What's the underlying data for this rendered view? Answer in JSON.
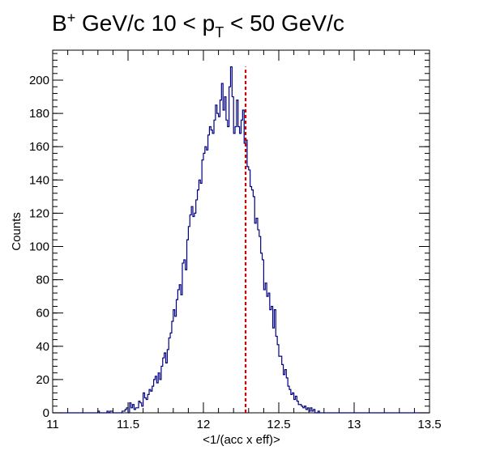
{
  "chart_data": {
    "type": "histogram",
    "title": {
      "prefix": "B",
      "prefix_sup": "+",
      "mid": " GeV/c 10 < p",
      "mid_sub": "T",
      "suffix": " < 50 GeV/c"
    },
    "xlabel": "<1/(acc x eff)>",
    "ylabel": "Counts",
    "xlim": [
      11,
      13.5
    ],
    "ylim": [
      0,
      218
    ],
    "x_ticks": [
      11,
      11.5,
      12,
      12.5,
      13,
      13.5
    ],
    "x_tick_labels": [
      "11",
      "11.5",
      "12",
      "12.5",
      "13",
      "13.5"
    ],
    "y_ticks": [
      0,
      20,
      40,
      60,
      80,
      100,
      120,
      140,
      160,
      180,
      200
    ],
    "y_tick_labels": [
      "0",
      "20",
      "40",
      "60",
      "80",
      "100",
      "120",
      "140",
      "160",
      "180",
      "200"
    ],
    "bin_start": 11,
    "bin_width": 0.01,
    "counts": [
      0,
      0,
      0,
      0,
      0,
      0,
      0,
      0,
      0,
      0,
      0,
      0,
      0,
      0,
      0,
      0,
      0,
      0,
      0,
      0,
      0,
      0,
      0,
      0,
      0,
      0,
      0,
      0,
      0,
      0,
      1,
      0,
      0,
      0,
      0,
      0,
      1,
      0,
      1,
      1,
      0,
      0,
      0,
      0,
      0,
      0,
      1,
      1,
      2,
      3,
      0,
      6,
      3,
      5,
      2,
      3,
      3,
      7,
      6,
      4,
      12,
      9,
      8,
      11,
      14,
      13,
      16,
      20,
      22,
      18,
      24,
      20,
      28,
      33,
      36,
      30,
      38,
      45,
      48,
      55,
      62,
      58,
      68,
      74,
      77,
      71,
      90,
      92,
      86,
      104,
      112,
      119,
      124,
      118,
      120,
      128,
      134,
      140,
      138,
      152,
      156,
      160,
      158,
      167,
      172,
      170,
      168,
      176,
      185,
      180,
      178,
      188,
      198,
      182,
      190,
      176,
      172,
      196,
      208,
      190,
      168,
      172,
      188,
      172,
      168,
      176,
      182,
      162,
      164,
      148,
      146,
      136,
      134,
      130,
      114,
      117,
      110,
      106,
      96,
      92,
      74,
      78,
      70,
      72,
      62,
      64,
      51,
      62,
      46,
      41,
      34,
      34,
      29,
      23,
      26,
      21,
      16,
      14,
      11,
      12,
      8,
      10,
      7,
      5,
      5,
      4,
      3,
      4,
      2,
      3,
      1,
      3,
      1,
      2,
      0,
      0,
      1,
      0,
      0,
      0,
      0,
      0,
      0,
      0,
      0,
      0,
      0,
      0,
      0,
      0,
      0,
      0,
      0,
      0,
      0,
      0,
      0,
      0,
      0,
      0,
      0,
      0,
      0,
      0,
      0,
      0,
      0,
      0,
      0,
      0,
      0,
      0,
      0,
      0,
      0,
      0,
      0,
      0,
      0,
      0,
      0,
      0,
      0,
      0,
      0,
      0,
      0,
      0,
      0,
      0,
      0,
      0,
      0,
      0,
      0,
      0,
      0,
      0,
      0,
      0,
      0,
      0,
      0,
      0,
      0,
      0,
      0,
      0,
      0,
      0
    ],
    "mean_line_x": 12.28,
    "grid": false,
    "colors": {
      "histogram": "#000080",
      "mean_line": "#cc0000",
      "axis": "#000000"
    }
  }
}
